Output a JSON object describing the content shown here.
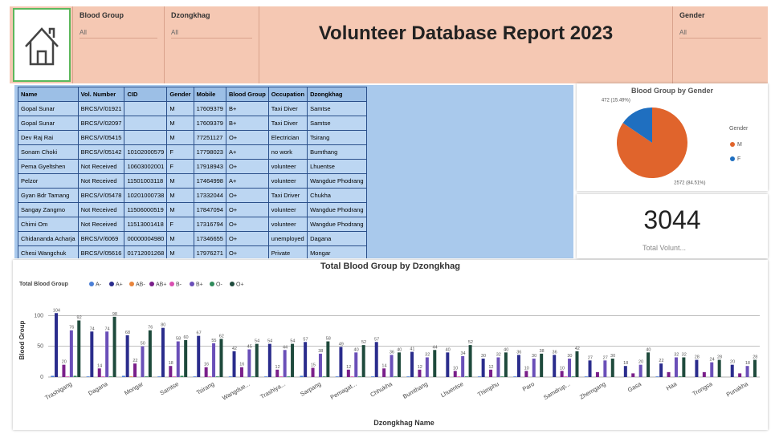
{
  "header": {
    "title": "Volunteer Database Report 2023",
    "filters": [
      {
        "label": "Blood Group",
        "value": "All"
      },
      {
        "label": "Dzongkhag",
        "value": "All"
      },
      {
        "label": "Gender",
        "value": "All"
      }
    ]
  },
  "table": {
    "columns": [
      "Name",
      "Vol. Number",
      "CID",
      "Gender",
      "Mobile",
      "Blood Group",
      "Occupation",
      "Dzongkhag"
    ],
    "rows": [
      [
        "Gopal Sunar",
        "BRCS/V/01921",
        null,
        "M",
        "17609379",
        "B+",
        "Taxi Diver",
        "Samtse"
      ],
      [
        "Gopal Sunar",
        "BRCS/V/02097",
        null,
        "M",
        "17609379",
        "B+",
        "Taxi Diver",
        "Samtse"
      ],
      [
        "Dev Raj Rai",
        "BRCS/V/05415",
        null,
        "M",
        "77251127",
        "O+",
        "Electrician",
        "Tsirang"
      ],
      [
        "Sonam Choki",
        "BRCS/V/05142",
        "10102000579",
        "F",
        "17798023",
        "A+",
        "no work",
        "Bumthang"
      ],
      [
        "Pema Gyeltshen",
        "Not Received",
        "10603002001",
        "F",
        "17918943",
        "O+",
        "volunteer",
        "Lhuentse"
      ],
      [
        "Pelzor",
        "Not Received",
        "11501003118",
        "M",
        "17464998",
        "A+",
        "volunteer",
        "Wangdue Phodrang"
      ],
      [
        "Gyan Bdr Tamang",
        "BRCS/V/05478",
        "10201000738",
        "M",
        "17332044",
        "O+",
        "Taxi Driver",
        "Chukha"
      ],
      [
        "Sangay Zangmo",
        "Not Received",
        "11506000519",
        "M",
        "17847094",
        "O+",
        "volunteer",
        "Wangdue Phodrang"
      ],
      [
        "Chimi Om",
        "Not Received",
        "11513001418",
        "F",
        "17316794",
        "O+",
        "volunteer",
        "Wangdue Phodrang"
      ],
      [
        "Chidananda Acharja",
        "BRCS/V/6069",
        "00000004980",
        "M",
        "17346655",
        "O+",
        "unemployed",
        "Dagana"
      ],
      [
        "Chesi Wangchuk",
        "BRCS/V/05616",
        "01712001268",
        "M",
        "17976271",
        "O+",
        "Private",
        "Mongar"
      ]
    ]
  },
  "card": {
    "value": 3044,
    "label": "Total Volunt..."
  },
  "chart_data": [
    {
      "type": "pie",
      "title": "Blood Group by Gender",
      "legend_title": "Gender",
      "categories": [
        "M",
        "F"
      ],
      "values": [
        2572,
        472
      ],
      "value_labels": [
        "2572 (84.51%)",
        "472 (15.49%)"
      ],
      "colors": [
        "#e0642c",
        "#1f6fc0"
      ]
    },
    {
      "type": "bar",
      "title": "Total Blood Group by Dzongkhag",
      "legend_title": "Total Blood Group",
      "x_label": "Dzongkhag Name",
      "y_label": "Blood Group",
      "categories": [
        "Trashigang",
        "Dagana",
        "Mongar",
        "Samtse",
        "Tsirang",
        "Wangdue...",
        "Trashiya...",
        "Sarpang",
        "Pemagat...",
        "Chhukha",
        "Bumthang",
        "Lhuentse",
        "Thimphu",
        "Paro",
        "Samdrup...",
        "Zhemgang",
        "Gasa",
        "Haa",
        "Trongsa",
        "Punakha"
      ],
      "series": [
        {
          "name": "A-",
          "color": "#4a7fd6",
          "values": [
            2,
            1,
            2,
            1,
            1,
            1,
            1,
            2,
            1,
            1,
            1,
            0,
            1,
            1,
            0,
            1,
            0,
            1,
            0,
            0
          ]
        },
        {
          "name": "A+",
          "color": "#2a2c8c",
          "values": [
            104,
            74,
            68,
            80,
            67,
            42,
            54,
            57,
            49,
            57,
            41,
            40,
            30,
            36,
            36,
            27,
            18,
            22,
            28,
            20
          ]
        },
        {
          "name": "AB-",
          "color": "#e8843c",
          "values": [
            0,
            0,
            1,
            0,
            0,
            0,
            0,
            0,
            0,
            0,
            0,
            0,
            0,
            0,
            0,
            0,
            0,
            0,
            0,
            0
          ]
        },
        {
          "name": "AB+",
          "color": "#7a1f8a",
          "values": [
            20,
            14,
            22,
            18,
            16,
            16,
            12,
            15,
            12,
            14,
            12,
            10,
            12,
            10,
            10,
            8,
            6,
            8,
            8,
            6
          ]
        },
        {
          "name": "B-",
          "color": "#d94fb0",
          "values": [
            1,
            1,
            0,
            1,
            1,
            0,
            1,
            0,
            1,
            0,
            0,
            1,
            0,
            0,
            1,
            0,
            0,
            0,
            0,
            0
          ]
        },
        {
          "name": "B+",
          "color": "#6a4fb8",
          "values": [
            76,
            74,
            50,
            58,
            55,
            45,
            44,
            38,
            40,
            36,
            32,
            34,
            32,
            30,
            30,
            27,
            20,
            32,
            24,
            18
          ]
        },
        {
          "name": "O-",
          "color": "#2f8a5a",
          "values": [
            2,
            1,
            1,
            2,
            1,
            1,
            1,
            1,
            1,
            1,
            0,
            1,
            1,
            0,
            1,
            0,
            0,
            1,
            0,
            0
          ]
        },
        {
          "name": "O+",
          "color": "#1e4a3c",
          "values": [
            92,
            98,
            76,
            60,
            62,
            54,
            54,
            58,
            52,
            40,
            44,
            52,
            40,
            38,
            42,
            30,
            40,
            32,
            28,
            28
          ]
        }
      ],
      "ylim": [
        0,
        120
      ],
      "yticks": [
        0,
        50,
        100
      ],
      "grid": true
    }
  ]
}
